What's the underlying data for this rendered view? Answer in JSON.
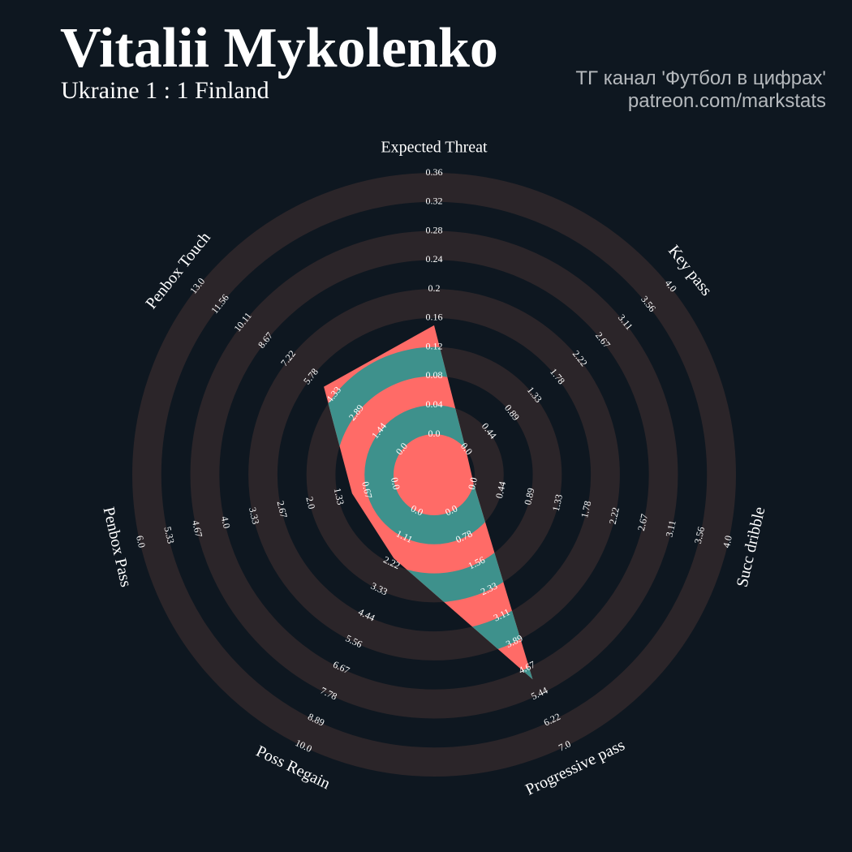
{
  "chart_data": {
    "type": "radar",
    "title": "Vitalii Mykolenko",
    "subtitle": "Ukraine 1 : 1 Finland",
    "credits": [
      "ТГ канал 'Футбол в цифрах'",
      "patreon.com/markstats"
    ],
    "categories": [
      "Expected Threat",
      "Key pass",
      "Succ dribble",
      "Progressive pass",
      "Poss Regain",
      "Penbox Pass",
      "Penbox Touch"
    ],
    "ranges": [
      [
        0,
        0.36
      ],
      [
        0,
        4
      ],
      [
        0,
        4
      ],
      [
        0,
        7
      ],
      [
        0,
        10
      ],
      [
        0,
        6
      ],
      [
        0,
        13
      ]
    ],
    "ticks": [
      [
        {
          "value": 0,
          "label": "0.0"
        },
        0.04,
        0.08,
        0.12,
        0.16,
        0.2,
        0.24,
        0.28,
        0.32,
        0.36
      ],
      [
        {
          "value": 0,
          "label": "0.0"
        },
        0.44,
        0.89,
        1.33,
        1.78,
        2.22,
        2.67,
        3.11,
        3.56,
        {
          "value": 4,
          "label": "4.0"
        }
      ],
      [
        {
          "value": 0,
          "label": "0.0"
        },
        0.44,
        0.89,
        1.33,
        1.78,
        2.22,
        2.67,
        3.11,
        3.56,
        {
          "value": 4,
          "label": "4.0"
        }
      ],
      [
        {
          "value": 0,
          "label": "0.0"
        },
        0.78,
        1.56,
        2.33,
        3.11,
        3.89,
        4.67,
        5.44,
        6.22,
        {
          "value": 7,
          "label": "7.0"
        }
      ],
      [
        {
          "value": 0,
          "label": "0.0"
        },
        1.11,
        2.22,
        3.33,
        4.44,
        5.56,
        6.67,
        7.78,
        8.89,
        {
          "value": 10,
          "label": "10.0"
        }
      ],
      [
        {
          "value": 0,
          "label": "0.0"
        },
        0.67,
        1.33,
        {
          "value": 2,
          "label": "2.0"
        },
        2.67,
        3.33,
        {
          "value": 4,
          "label": "4.0"
        },
        4.67,
        5.33,
        {
          "value": 6,
          "label": "6.0"
        }
      ],
      [
        {
          "value": 0,
          "label": "0.0"
        },
        1.44,
        2.89,
        4.33,
        5.78,
        7.22,
        8.67,
        10.11,
        11.56,
        {
          "value": 13,
          "label": "13.0"
        }
      ]
    ],
    "series": [
      {
        "color": "#ff6b67",
        "values": [
          0.15,
          0,
          0,
          5.0,
          2.0,
          1.0,
          5.0
        ]
      }
    ],
    "highlight_color": "#3e918c",
    "ring_color": "#2b2529"
  }
}
